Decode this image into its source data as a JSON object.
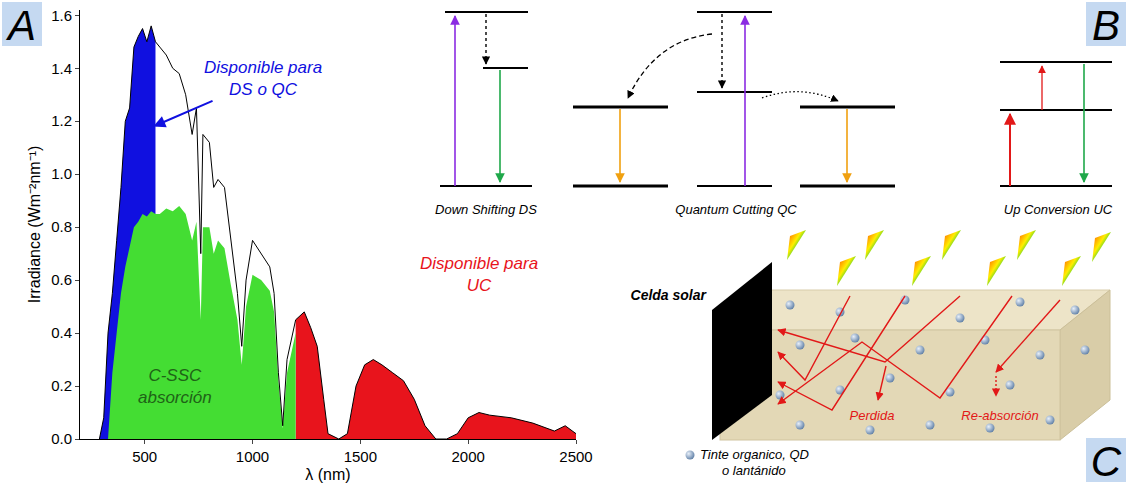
{
  "chart_data": {
    "type": "area",
    "panel_label": "A",
    "x_label": "λ (nm)",
    "y_label": "Irradiance (Wm⁻²nm⁻¹)",
    "xlim": [
      200,
      2500
    ],
    "xticks": [
      500,
      1000,
      1500,
      2000,
      2500
    ],
    "ylim": [
      0,
      1.62
    ],
    "yticks": [
      {
        "value": 0,
        "label": "0.0"
      },
      {
        "value": 0.2,
        "label": "0.2"
      },
      {
        "value": 0.4,
        "label": "0.4"
      },
      {
        "value": 0.6,
        "label": "0.6"
      },
      {
        "value": 0.8,
        "label": "0.8"
      },
      {
        "value": 1.0,
        "label": "1.0"
      },
      {
        "value": 1.2,
        "label": "1.2"
      },
      {
        "value": 1.4,
        "label": "1.4"
      },
      {
        "value": 1.6,
        "label": "1.6"
      }
    ],
    "grid": false,
    "x": [
      290,
      310,
      330,
      350,
      370,
      390,
      410,
      430,
      450,
      470,
      490,
      510,
      530,
      550,
      570,
      600,
      630,
      660,
      690,
      720,
      740,
      760,
      770,
      800,
      820,
      840,
      870,
      900,
      930,
      950,
      970,
      1000,
      1040,
      1080,
      1100,
      1120,
      1140,
      1160,
      1200,
      1240,
      1270,
      1300,
      1330,
      1350,
      1400,
      1440,
      1480,
      1520,
      1560,
      1600,
      1650,
      1700,
      1750,
      1800,
      1850,
      1900,
      1950,
      2000,
      2050,
      2100,
      2200,
      2300,
      2400,
      2450,
      2500
    ],
    "series": [
      {
        "name": "Disponible para DS o QC",
        "type": "area",
        "color": "#1010e0",
        "values": [
          0,
          0.08,
          0.4,
          0.55,
          0.75,
          0.95,
          1.2,
          1.25,
          1.48,
          1.52,
          1.55,
          1.5,
          1.56,
          1.5,
          null,
          null,
          null,
          null,
          null,
          null,
          null,
          null,
          null,
          null,
          null,
          null,
          null,
          null,
          null,
          null,
          null,
          null,
          null,
          null,
          null,
          null,
          null,
          null,
          null,
          null,
          null,
          null,
          null,
          null,
          null,
          null,
          null,
          null,
          null,
          null,
          null,
          null,
          null,
          null,
          null,
          null,
          null,
          null,
          null,
          null,
          null,
          null,
          null,
          null,
          null
        ]
      },
      {
        "name": "Disponible para UC",
        "type": "area",
        "color": "#e8141c",
        "values": [
          null,
          null,
          null,
          null,
          null,
          null,
          null,
          null,
          null,
          null,
          null,
          null,
          null,
          null,
          null,
          null,
          null,
          null,
          null,
          null,
          null,
          null,
          null,
          null,
          null,
          null,
          null,
          null,
          null,
          null,
          null,
          null,
          null,
          null,
          null,
          null,
          null,
          null,
          0.45,
          0.48,
          0.42,
          0.35,
          0.15,
          0.02,
          0,
          0.02,
          0.2,
          0.28,
          0.3,
          0.28,
          0.25,
          0.22,
          0.15,
          0.05,
          0,
          0,
          0.02,
          0.08,
          0.1,
          0.09,
          0.08,
          0.06,
          0.03,
          0.05,
          0.02
        ]
      },
      {
        "name": "C-SSC absorción",
        "type": "area",
        "color": "#44dd33",
        "values": [
          null,
          null,
          0,
          0.25,
          0.4,
          0.55,
          0.65,
          0.72,
          0.8,
          0.82,
          0.85,
          0.84,
          0.86,
          0.85,
          0.85,
          0.87,
          0.86,
          0.88,
          0.85,
          0.75,
          0.82,
          0.45,
          0.8,
          0.8,
          0.7,
          0.75,
          0.72,
          0.58,
          0.45,
          0.28,
          0.5,
          0.62,
          0.6,
          0.56,
          0.48,
          0.22,
          0.04,
          0.25,
          0.4,
          null,
          null,
          null,
          null,
          null,
          null,
          null,
          null,
          null,
          null,
          null,
          null,
          null,
          null,
          null,
          null,
          null,
          null,
          null,
          null,
          null,
          null,
          null,
          null,
          null,
          null
        ]
      },
      {
        "type": "line",
        "color": "#000000",
        "values": [
          0,
          0.08,
          0.4,
          0.55,
          0.75,
          0.95,
          1.2,
          1.25,
          1.48,
          1.52,
          1.55,
          1.5,
          1.56,
          1.5,
          1.48,
          1.45,
          1.4,
          1.38,
          1.3,
          1.15,
          1.25,
          0.7,
          1.15,
          1.12,
          0.95,
          0.98,
          0.95,
          0.75,
          0.55,
          0.35,
          0.6,
          0.75,
          0.7,
          0.65,
          0.55,
          0.25,
          0.05,
          0.3,
          0.45,
          0.48,
          0.42,
          0.35,
          0.15,
          0.02,
          0,
          0.02,
          0.2,
          0.28,
          0.3,
          0.28,
          0.25,
          0.22,
          0.15,
          0.05,
          0,
          0,
          0.02,
          0.08,
          0.1,
          0.09,
          0.08,
          0.06,
          0.03,
          0.05,
          0.02
        ]
      }
    ]
  },
  "diagrams": {
    "B": {
      "panel_label": "B",
      "processes": [
        "Down Shifting DS",
        "Quantum Cutting QC",
        "Up Conversion UC"
      ]
    },
    "C": {
      "panel_label": "C",
      "cell": "Celda solar",
      "loss": "Perdida",
      "reabsorption": "Re-absorción",
      "particles": "Tinte organico, QD o lantánido"
    }
  }
}
